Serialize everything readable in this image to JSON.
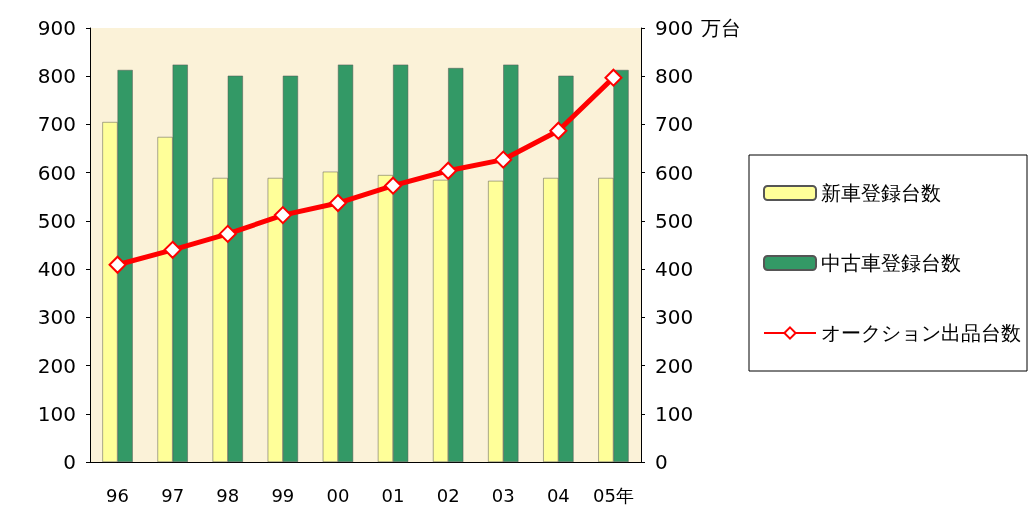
{
  "chart_data": {
    "type": "bar",
    "categories": [
      "96",
      "97",
      "98",
      "99",
      "00",
      "01",
      "02",
      "03",
      "04",
      "05年"
    ],
    "series": [
      {
        "name": "新車登録台数",
        "color": "#ffff99",
        "values": [
          705,
          674,
          589,
          589,
          602,
          595,
          585,
          583,
          589,
          589
        ]
      },
      {
        "name": "中古車登録台数",
        "color": "#339966",
        "values": [
          813,
          824,
          801,
          801,
          824,
          824,
          817,
          824,
          801,
          813
        ]
      },
      {
        "name": "オークション出品台数",
        "color": "#ff0000",
        "type": "line",
        "marker": "diamond",
        "values": [
          409,
          440,
          473,
          512,
          537,
          573,
          604,
          627,
          687,
          797
        ]
      }
    ],
    "ylim": [
      0,
      900
    ],
    "yticks": [
      0,
      100,
      200,
      300,
      400,
      500,
      600,
      700,
      800,
      900
    ],
    "y2lim": [
      0,
      900
    ],
    "y2ticks": [
      0,
      100,
      200,
      300,
      400,
      500,
      600,
      700,
      800,
      900
    ],
    "y2label": "万台",
    "grid": false,
    "legend": "right"
  }
}
